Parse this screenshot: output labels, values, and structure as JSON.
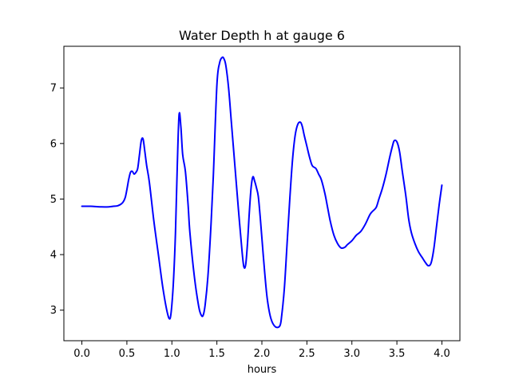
{
  "chart_data": {
    "type": "line",
    "title": "Water Depth h at gauge 6",
    "xlabel": "hours",
    "ylabel": "",
    "xlim": [
      -0.2,
      4.2
    ],
    "ylim": [
      2.45,
      7.75
    ],
    "xticks": [
      0.0,
      0.5,
      1.0,
      1.5,
      2.0,
      2.5,
      3.0,
      3.5,
      4.0
    ],
    "xtick_labels": [
      "0.0",
      "0.5",
      "1.0",
      "1.5",
      "2.0",
      "2.5",
      "3.0",
      "3.5",
      "4.0"
    ],
    "yticks": [
      3,
      4,
      5,
      6,
      7
    ],
    "ytick_labels": [
      "3",
      "4",
      "5",
      "6",
      "7"
    ],
    "grid": false,
    "series": [
      {
        "color": "#0000ff",
        "x": [
          0.0,
          0.1,
          0.2,
          0.3,
          0.35,
          0.4,
          0.45,
          0.48,
          0.5,
          0.52,
          0.54,
          0.56,
          0.58,
          0.6,
          0.62,
          0.64,
          0.66,
          0.68,
          0.7,
          0.72,
          0.75,
          0.8,
          0.85,
          0.9,
          0.95,
          0.98,
          1.0,
          1.02,
          1.04,
          1.06,
          1.08,
          1.1,
          1.12,
          1.15,
          1.18,
          1.2,
          1.25,
          1.3,
          1.33,
          1.35,
          1.37,
          1.4,
          1.43,
          1.46,
          1.5,
          1.53,
          1.56,
          1.58,
          1.6,
          1.63,
          1.66,
          1.7,
          1.74,
          1.78,
          1.8,
          1.82,
          1.84,
          1.86,
          1.88,
          1.9,
          1.92,
          1.94,
          1.96,
          1.98,
          2.0,
          2.03,
          2.06,
          2.1,
          2.15,
          2.2,
          2.22,
          2.25,
          2.28,
          2.31,
          2.34,
          2.37,
          2.4,
          2.43,
          2.45,
          2.47,
          2.5,
          2.53,
          2.56,
          2.6,
          2.63,
          2.66,
          2.7,
          2.73,
          2.76,
          2.8,
          2.84,
          2.88,
          2.92,
          2.95,
          3.0,
          3.05,
          3.1,
          3.15,
          3.2,
          3.23,
          3.27,
          3.3,
          3.34,
          3.38,
          3.42,
          3.45,
          3.47,
          3.5,
          3.53,
          3.56,
          3.6,
          3.63,
          3.66,
          3.7,
          3.74,
          3.78,
          3.82,
          3.85,
          3.88,
          3.91,
          3.94,
          3.97,
          4.0
        ],
        "y": [
          4.87,
          4.87,
          4.86,
          4.86,
          4.87,
          4.88,
          4.93,
          5.02,
          5.17,
          5.35,
          5.48,
          5.5,
          5.45,
          5.48,
          5.55,
          5.8,
          6.05,
          6.08,
          5.85,
          5.6,
          5.3,
          4.6,
          4.0,
          3.4,
          2.95,
          2.85,
          3.1,
          3.6,
          4.4,
          5.6,
          6.52,
          6.3,
          5.8,
          5.5,
          4.9,
          4.4,
          3.6,
          3.05,
          2.9,
          2.92,
          3.1,
          3.6,
          4.4,
          5.4,
          7.05,
          7.45,
          7.55,
          7.52,
          7.4,
          7.0,
          6.4,
          5.6,
          4.8,
          4.05,
          3.78,
          3.82,
          4.2,
          4.75,
          5.2,
          5.4,
          5.32,
          5.2,
          5.05,
          4.7,
          4.3,
          3.7,
          3.2,
          2.85,
          2.7,
          2.72,
          2.9,
          3.4,
          4.2,
          5.0,
          5.7,
          6.15,
          6.35,
          6.38,
          6.3,
          6.15,
          5.95,
          5.75,
          5.6,
          5.55,
          5.45,
          5.35,
          5.1,
          4.85,
          4.6,
          4.35,
          4.2,
          4.12,
          4.13,
          4.18,
          4.25,
          4.35,
          4.42,
          4.55,
          4.72,
          4.78,
          4.85,
          5.0,
          5.2,
          5.45,
          5.75,
          5.95,
          6.05,
          6.03,
          5.85,
          5.5,
          5.05,
          4.65,
          4.4,
          4.2,
          4.05,
          3.95,
          3.85,
          3.8,
          3.85,
          4.1,
          4.5,
          4.9,
          5.25
        ]
      }
    ]
  }
}
